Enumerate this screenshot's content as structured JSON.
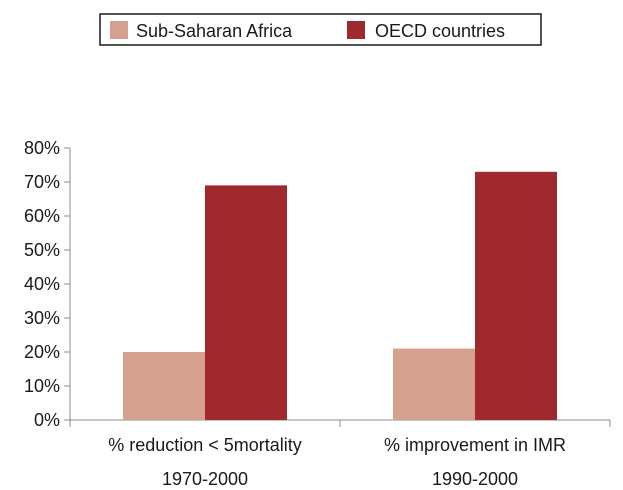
{
  "chart_data": {
    "type": "bar",
    "categories": [
      [
        "% reduction < 5mortality",
        "1970-2000"
      ],
      [
        "% improvement in IMR",
        "1990-2000"
      ]
    ],
    "series": [
      {
        "name": "Sub-Saharan Africa",
        "color": "#d4a090",
        "values": [
          20,
          21
        ]
      },
      {
        "name": "OECD countries",
        "color": "#a0292e",
        "values": [
          69,
          73
        ]
      }
    ],
    "ylim": [
      0,
      80
    ],
    "yticks": [
      "0%",
      "10%",
      "20%",
      "30%",
      "40%",
      "50%",
      "60%",
      "70%",
      "80%"
    ],
    "grid": false,
    "legend": "top-center"
  }
}
